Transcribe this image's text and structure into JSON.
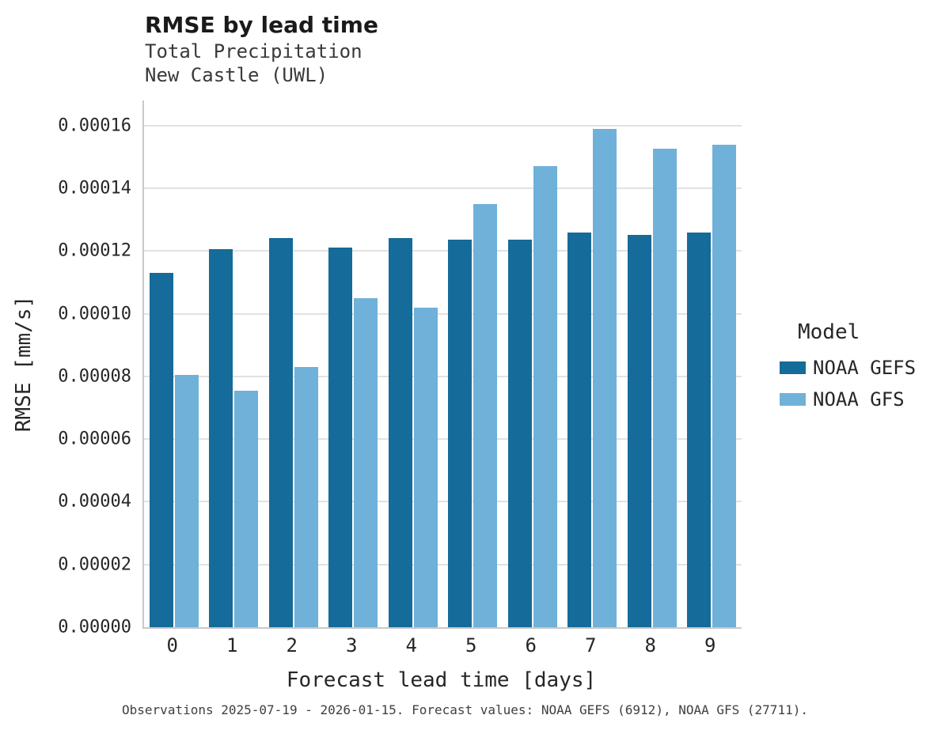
{
  "title": "RMSE by lead time",
  "subtitle_lines": [
    "Total Precipitation",
    "New Castle (UWL)"
  ],
  "footer": "Observations 2025-07-19 - 2026-01-15. Forecast values: NOAA GEFS (6912), NOAA GFS (27711).",
  "legend": {
    "title": "Model",
    "entries": [
      {
        "label": "NOAA GEFS",
        "color": "#156b99"
      },
      {
        "label": "NOAA GFS",
        "color": "#6fb1d9"
      }
    ]
  },
  "chart_data": {
    "type": "bar",
    "title": "RMSE by lead time",
    "subtitle": "Total Precipitation — New Castle (UWL)",
    "xlabel": "Forecast lead time [days]",
    "ylabel": "RMSE [mm/s]",
    "categories": [
      "0",
      "1",
      "2",
      "3",
      "4",
      "5",
      "6",
      "7",
      "8",
      "9"
    ],
    "series": [
      {
        "name": "NOAA GEFS",
        "color": "#156b99",
        "values": [
          0.000113,
          0.0001205,
          0.000124,
          0.000121,
          0.000124,
          0.0001235,
          0.0001235,
          0.000126,
          0.000125,
          0.000126
        ]
      },
      {
        "name": "NOAA GFS",
        "color": "#6fb1d9",
        "values": [
          8.05e-05,
          7.55e-05,
          8.3e-05,
          0.000105,
          0.000102,
          0.000135,
          0.000147,
          0.000159,
          0.0001525,
          0.000154
        ]
      }
    ],
    "ylim": [
      0,
      0.000168
    ],
    "ytick_values": [
      0,
      2e-05,
      4e-05,
      6e-05,
      8e-05,
      0.0001,
      0.00012,
      0.00014,
      0.00016
    ],
    "ytick_labels": [
      "0.00000",
      "0.00002",
      "0.00004",
      "0.00006",
      "0.00008",
      "0.00010",
      "0.00012",
      "0.00014",
      "0.00016"
    ],
    "grid": true,
    "legend_title": "Model",
    "legend_position": "right"
  }
}
